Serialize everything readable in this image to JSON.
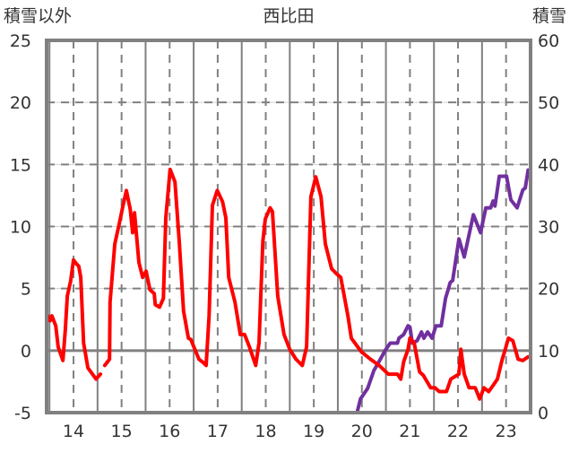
{
  "chart_data": {
    "type": "line",
    "title": "西比田",
    "ylabel_left": "積雪以外",
    "ylabel_right": "積雪",
    "xlabel": "",
    "xlim": [
      13.44,
      23.51
    ],
    "ylim_left": [
      -5,
      25
    ],
    "ylim_right": [
      0,
      60
    ],
    "x_ticks": [
      "14",
      "15",
      "16",
      "17",
      "18",
      "19",
      "20",
      "21",
      "22",
      "23"
    ],
    "y_ticks_left": [
      "25",
      "20",
      "15",
      "10",
      "5",
      "0",
      "-5"
    ],
    "y_ticks_right": [
      "60",
      "50",
      "40",
      "30",
      "20",
      "10",
      "0"
    ],
    "grid": true,
    "colors": {
      "non_snow": "#ff0000",
      "snow": "#7030a0",
      "grid": "#808080"
    },
    "series": [
      {
        "name": "積雪以外",
        "axis": "left",
        "color": "#ff0000",
        "points": [
          [
            13.46,
            2.8
          ],
          [
            13.51,
            2.4
          ],
          [
            13.55,
            2.8
          ],
          [
            13.63,
            2.0
          ],
          [
            13.68,
            0.3
          ],
          [
            13.78,
            -0.8
          ],
          [
            13.83,
            1.7
          ],
          [
            13.87,
            4.4
          ],
          [
            13.94,
            5.6
          ],
          [
            14.0,
            7.3
          ],
          [
            14.06,
            7.0
          ],
          [
            14.11,
            6.8
          ],
          [
            14.15,
            5.9
          ],
          [
            14.21,
            0.6
          ],
          [
            14.3,
            -1.4
          ],
          [
            14.47,
            -2.3
          ],
          [
            14.56,
            -1.9
          ],
          null,
          [
            14.65,
            -1.2
          ],
          [
            14.75,
            -0.7
          ],
          [
            14.76,
            3.9
          ],
          [
            14.86,
            8.6
          ],
          [
            14.95,
            10.2
          ],
          [
            15.03,
            11.7
          ],
          [
            15.1,
            12.9
          ],
          [
            15.18,
            11.4
          ],
          [
            15.23,
            9.5
          ],
          [
            15.27,
            11.1
          ],
          [
            15.36,
            7.1
          ],
          [
            15.44,
            5.9
          ],
          [
            15.51,
            6.4
          ],
          [
            15.59,
            4.9
          ],
          [
            15.68,
            4.6
          ],
          [
            15.7,
            3.7
          ],
          [
            15.79,
            3.5
          ],
          [
            15.87,
            4.2
          ],
          [
            15.92,
            10.7
          ],
          [
            16.01,
            14.6
          ],
          [
            16.11,
            13.6
          ],
          [
            16.2,
            8.8
          ],
          [
            16.29,
            3.2
          ],
          [
            16.39,
            1.0
          ],
          [
            16.44,
            0.9
          ],
          [
            16.61,
            -0.7
          ],
          [
            16.71,
            -1.0
          ],
          [
            16.76,
            -1.2
          ],
          [
            16.82,
            2.8
          ],
          [
            16.89,
            11.7
          ],
          [
            16.99,
            12.9
          ],
          [
            17.1,
            12.0
          ],
          [
            17.17,
            10.7
          ],
          [
            17.23,
            5.9
          ],
          [
            17.36,
            3.9
          ],
          [
            17.47,
            1.3
          ],
          [
            17.56,
            1.3
          ],
          [
            17.66,
            0.3
          ],
          [
            17.79,
            -1.2
          ],
          [
            17.86,
            0.6
          ],
          [
            17.94,
            8.8
          ],
          [
            17.99,
            10.6
          ],
          [
            18.09,
            11.5
          ],
          [
            18.14,
            11.2
          ],
          [
            18.25,
            4.4
          ],
          [
            18.38,
            1.3
          ],
          [
            18.5,
            0.1
          ],
          [
            18.63,
            -0.7
          ],
          [
            18.76,
            -1.2
          ],
          [
            18.85,
            0.3
          ],
          [
            18.94,
            12.4
          ],
          [
            19.04,
            14.0
          ],
          [
            19.15,
            12.4
          ],
          [
            19.24,
            8.6
          ],
          [
            19.37,
            6.6
          ],
          [
            19.47,
            6.2
          ],
          [
            19.56,
            5.9
          ],
          [
            19.71,
            2.8
          ],
          [
            19.78,
            1.0
          ],
          [
            19.99,
            -0.1
          ],
          [
            20.18,
            -0.7
          ],
          [
            20.36,
            -1.2
          ],
          [
            20.55,
            -1.9
          ],
          [
            20.74,
            -1.9
          ],
          [
            20.81,
            -2.3
          ],
          [
            20.87,
            -0.9
          ],
          [
            20.96,
            0.1
          ],
          [
            21.0,
            1.0
          ],
          [
            21.09,
            0.6
          ],
          [
            21.2,
            -1.7
          ],
          [
            21.28,
            -2.0
          ],
          [
            21.43,
            -3.0
          ],
          [
            21.52,
            -3.0
          ],
          [
            21.61,
            -3.3
          ],
          [
            21.76,
            -3.3
          ],
          [
            21.85,
            -2.3
          ],
          [
            22.02,
            -1.9
          ],
          [
            22.06,
            0.1
          ],
          [
            22.13,
            -1.9
          ],
          [
            22.23,
            -3.0
          ],
          [
            22.36,
            -3.0
          ],
          [
            22.45,
            -3.9
          ],
          [
            22.54,
            -3.0
          ],
          [
            22.64,
            -3.3
          ],
          [
            22.73,
            -2.8
          ],
          [
            22.82,
            -2.3
          ],
          [
            22.92,
            -0.7
          ],
          [
            22.97,
            -0.1
          ],
          [
            23.05,
            1.0
          ],
          [
            23.14,
            0.8
          ],
          [
            23.25,
            -0.7
          ],
          [
            23.35,
            -0.8
          ],
          [
            23.46,
            -0.5
          ]
        ]
      },
      {
        "name": "積雪",
        "axis": "right",
        "color": "#7030a0",
        "points": [
          [
            13.46,
            0
          ],
          [
            19.9,
            0
          ],
          [
            19.97,
            2.2
          ],
          [
            20.12,
            3.9
          ],
          [
            20.25,
            6.8
          ],
          [
            20.34,
            8.0
          ],
          [
            20.49,
            10.1
          ],
          [
            20.59,
            11.2
          ],
          [
            20.74,
            11.2
          ],
          [
            20.77,
            12.0
          ],
          [
            20.87,
            12.6
          ],
          [
            20.96,
            14.0
          ],
          [
            21.0,
            13.8
          ],
          [
            21.05,
            11.2
          ],
          [
            21.15,
            11.6
          ],
          [
            21.24,
            13.0
          ],
          [
            21.29,
            12.0
          ],
          [
            21.37,
            13.0
          ],
          [
            21.46,
            12.0
          ],
          [
            21.54,
            14.0
          ],
          [
            21.65,
            14.0
          ],
          [
            21.74,
            18.4
          ],
          [
            21.84,
            21.0
          ],
          [
            21.89,
            21.3
          ],
          [
            22.02,
            28.0
          ],
          [
            22.13,
            25.1
          ],
          [
            22.32,
            31.9
          ],
          [
            22.47,
            29.0
          ],
          [
            22.58,
            33.0
          ],
          [
            22.68,
            33.0
          ],
          [
            22.73,
            34.1
          ],
          [
            22.77,
            33.3
          ],
          [
            22.86,
            38.1
          ],
          [
            23.01,
            38.1
          ],
          [
            23.1,
            34.3
          ],
          [
            23.23,
            33.0
          ],
          [
            23.35,
            35.9
          ],
          [
            23.4,
            36.2
          ],
          [
            23.46,
            39.1
          ]
        ]
      }
    ]
  }
}
